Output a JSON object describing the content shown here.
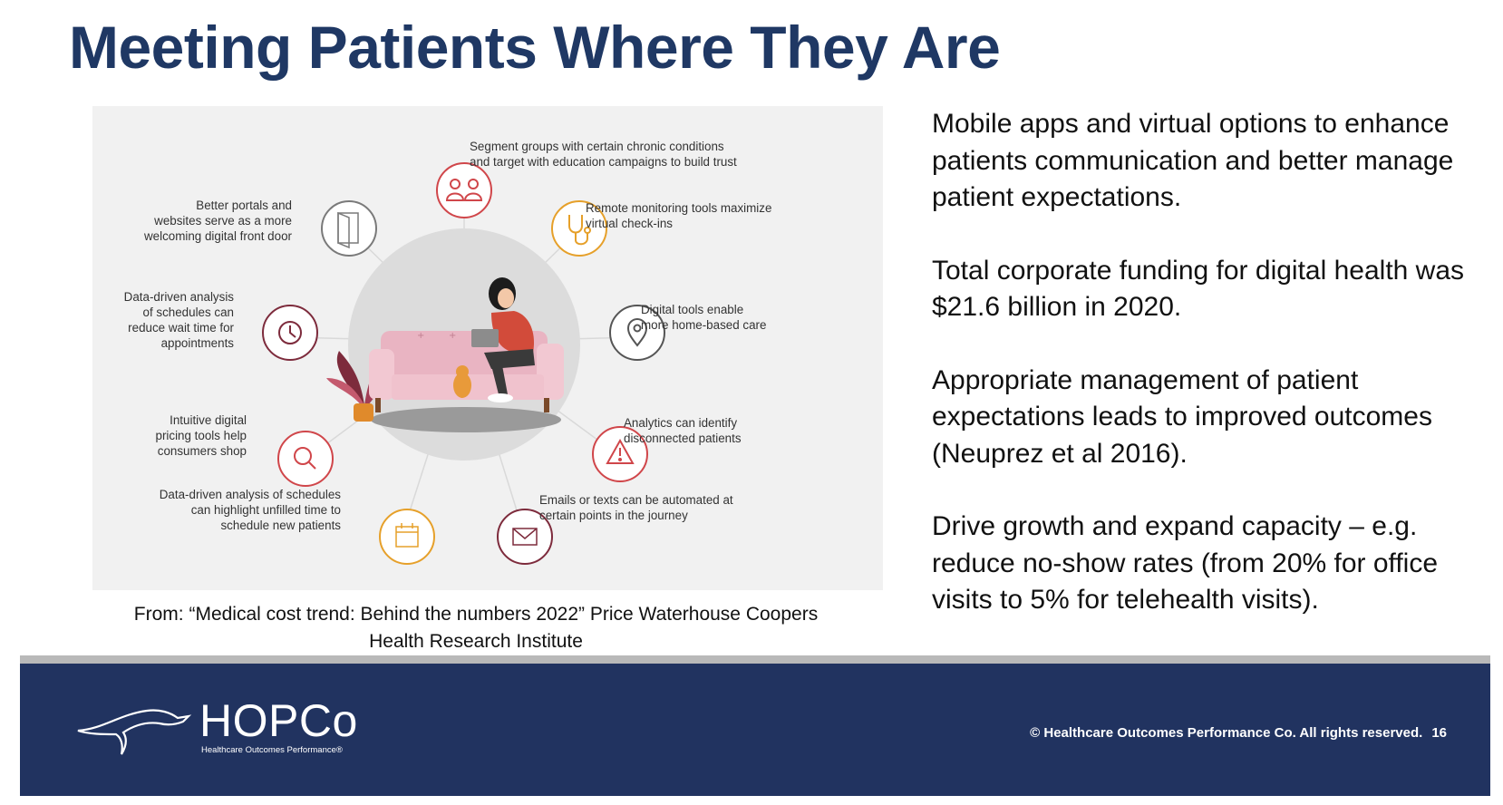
{
  "title": "Meeting Patients Where They Are",
  "figure": {
    "labels": {
      "segment": "Segment groups with certain chronic conditions\nand target with education campaigns to build trust",
      "portals": "Better portals and\nwebsites serve as a more\nwelcoming digital front door",
      "remote": "Remote monitoring tools maximize\nvirtual check-ins",
      "schedules_wait": "Data-driven analysis\nof schedules can\nreduce wait time for\nappointments",
      "home": "Digital tools enable\nmore home-based care",
      "pricing": "Intuitive digital\npricing tools help\nconsumers shop",
      "analytics": "Analytics can identify\ndisconnected patients",
      "schedules_unfilled": "Data-driven analysis of schedules\ncan highlight unfilled time to\nschedule new patients",
      "emails": "Emails or texts can be automated at\ncertain points in the journey"
    },
    "icons": {
      "segment": "people-icon",
      "portals": "door-icon",
      "remote": "stethoscope-icon",
      "schedules_wait": "clock-icon",
      "home": "location-pin-icon",
      "pricing": "magnifier-icon",
      "analytics": "warning-icon",
      "schedules_unfilled": "calendar-icon",
      "emails": "envelope-icon"
    },
    "colors": {
      "background": "#f1f1f1",
      "red": "#d0464a",
      "orange": "#e6a02a",
      "grey": "#6e6e6e",
      "maroon": "#7d2b3c",
      "couch": "#eab3c0"
    }
  },
  "caption": "From: “Medical cost trend: Behind the numbers 2022” Price Waterhouse Coopers\nHealth Research Institute",
  "bullets": [
    "Mobile apps and virtual options to enhance patients communication and better manage patient expectations.",
    "Total corporate funding for digital health was $21.6 billion in 2020.",
    "Appropriate management of patient expectations leads to improved outcomes (Neuprez et al 2016).",
    "Drive growth and expand capacity – e.g. reduce no-show rates (from 20% for office visits to 5% for telehealth visits)."
  ],
  "footer": {
    "logo_text": "HOPCo",
    "logo_subtitle": "Healthcare Outcomes Performance®",
    "copyright": "© Healthcare Outcomes Performance Co. All rights reserved.",
    "page_number": "16",
    "background": "#213360"
  }
}
